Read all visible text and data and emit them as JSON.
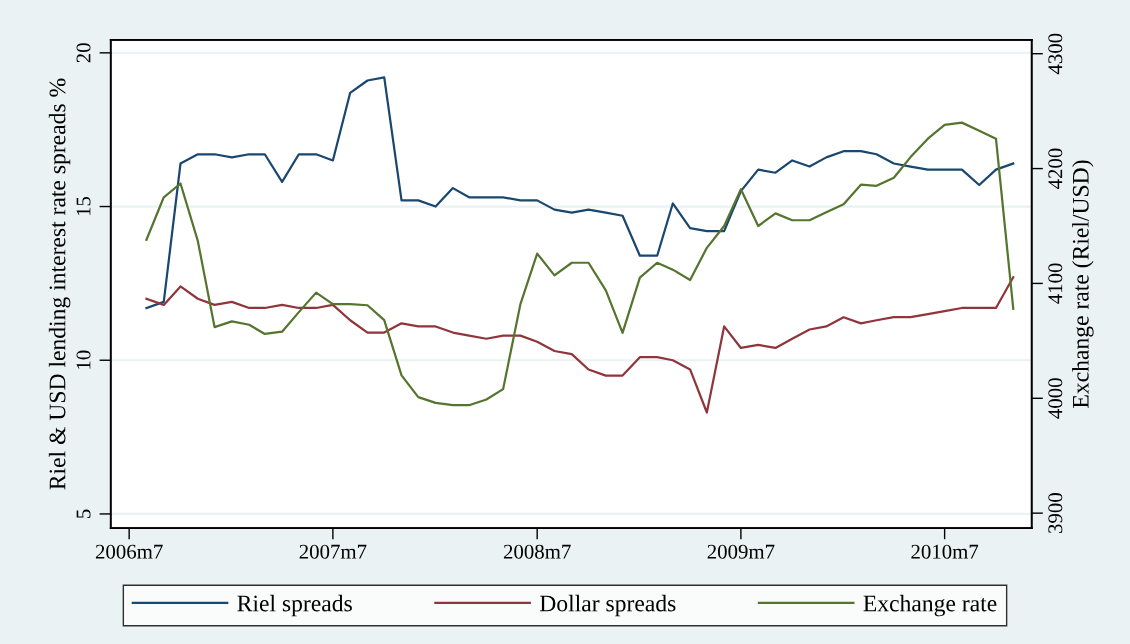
{
  "chart_data": {
    "type": "line",
    "x": [
      "2006-08",
      "2006-09",
      "2006-10",
      "2006-11",
      "2006-12",
      "2007-01",
      "2007-02",
      "2007-03",
      "2007-04",
      "2007-05",
      "2007-06",
      "2007-07",
      "2007-08",
      "2007-09",
      "2007-10",
      "2007-11",
      "2007-12",
      "2008-01",
      "2008-02",
      "2008-03",
      "2008-04",
      "2008-05",
      "2008-06",
      "2008-07",
      "2008-08",
      "2008-09",
      "2008-10",
      "2008-11",
      "2008-12",
      "2009-01",
      "2009-02",
      "2009-03",
      "2009-04",
      "2009-05",
      "2009-06",
      "2009-07",
      "2009-08",
      "2009-09",
      "2009-10",
      "2009-11",
      "2009-12",
      "2010-01",
      "2010-02",
      "2010-03",
      "2010-04",
      "2010-05",
      "2010-06",
      "2010-07",
      "2010-08",
      "2010-09",
      "2010-10",
      "2010-11"
    ],
    "ylabel": "Riel & USD lending interest rate spreads %",
    "y2label": "Exchange rate (Riel/USD)",
    "xlim": [
      "2006-05-29",
      "2010-12-04"
    ],
    "xticks": [
      {
        "value": "2006-07",
        "label": "2006m7"
      },
      {
        "value": "2007-07",
        "label": "2007m7"
      },
      {
        "value": "2008-07",
        "label": "2008m7"
      },
      {
        "value": "2009-07",
        "label": "2009m7"
      },
      {
        "value": "2010-07",
        "label": "2010m7"
      }
    ],
    "ylim": [
      4.54,
      20.42
    ],
    "yticks": [
      5,
      10,
      15,
      20
    ],
    "y2lim": [
      3887,
      4312
    ],
    "y2ticks": [
      3900,
      4000,
      4100,
      4200,
      4300
    ],
    "grid": "y",
    "legend": "bottom",
    "line_style": "solid",
    "marker": "none",
    "series": [
      {
        "name": "Riel spreads",
        "color": "#1a476f",
        "values": [
          11.7,
          11.9,
          16.4,
          16.7,
          16.7,
          16.6,
          16.7,
          16.7,
          15.8,
          16.7,
          16.7,
          16.5,
          18.7,
          19.1,
          19.2,
          15.2,
          15.2,
          15.0,
          15.6,
          15.3,
          15.3,
          15.3,
          15.2,
          15.2,
          14.9,
          14.8,
          14.9,
          14.8,
          14.7,
          13.4,
          13.4,
          15.1,
          14.3,
          14.2,
          14.2,
          15.5,
          16.2,
          16.1,
          16.5,
          16.3,
          16.6,
          16.8,
          16.8,
          16.7,
          16.4,
          16.3,
          16.2,
          16.2,
          16.2,
          15.7,
          16.2,
          16.4
        ]
      },
      {
        "name": "Dollar spreads",
        "color": "#90353b",
        "values": [
          12.0,
          11.8,
          12.4,
          12.0,
          11.8,
          11.9,
          11.7,
          11.7,
          11.8,
          11.7,
          11.7,
          11.8,
          11.3,
          10.9,
          10.9,
          11.2,
          11.1,
          11.1,
          10.9,
          10.8,
          10.7,
          10.8,
          10.8,
          10.6,
          10.3,
          10.2,
          9.7,
          9.5,
          9.5,
          10.1,
          10.1,
          10.0,
          9.7,
          8.3,
          11.1,
          10.4,
          10.5,
          10.4,
          10.7,
          11.0,
          11.1,
          11.4,
          11.2,
          11.3,
          11.4,
          11.4,
          11.5,
          11.6,
          11.7,
          11.7,
          11.7,
          12.7
        ]
      },
      {
        "name": "Exchange rate",
        "color": "#55752f",
        "axis": "y2",
        "values": [
          4138,
          4175,
          4187,
          4137,
          4062,
          4067,
          4064,
          4056,
          4058,
          4075,
          4092,
          4082,
          4082,
          4081,
          4068,
          4020,
          4001,
          3996,
          3994,
          3994,
          3999,
          4008,
          4082,
          4126,
          4107,
          4118,
          4118,
          4094,
          4057,
          4105,
          4118,
          4112,
          4103,
          4131,
          4150,
          4182,
          4150,
          4161,
          4155,
          4155,
          4162,
          4169,
          4186,
          4185,
          4192,
          4210,
          4226,
          4238,
          4240,
          4233,
          4226,
          4078
        ]
      }
    ]
  }
}
